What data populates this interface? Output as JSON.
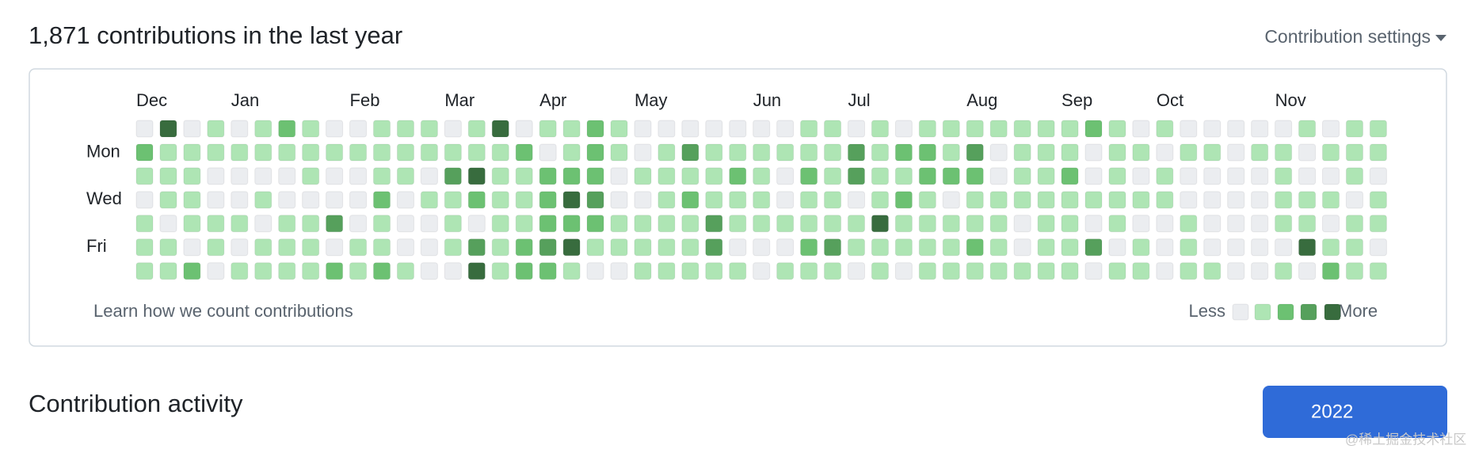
{
  "header": {
    "title": "1,871 contributions in the last year",
    "settings": "Contribution settings"
  },
  "calendar": {
    "months": [
      "Dec",
      "Jan",
      "Feb",
      "Mar",
      "Apr",
      "May",
      "Jun",
      "Jul",
      "Aug",
      "Sep",
      "Oct",
      "Nov"
    ],
    "days": [
      "Mon",
      "Wed",
      "Fri"
    ],
    "level_colors": [
      "#ebedf0",
      "#aee5b4",
      "#6cc172",
      "#56a05c",
      "#386c3e"
    ],
    "levels": [
      [
        0,
        4,
        0,
        1,
        0,
        1,
        2,
        1,
        0,
        0,
        1,
        1,
        1,
        0,
        1,
        4,
        0,
        1,
        1,
        2,
        1,
        0,
        0,
        0,
        0,
        0,
        0,
        0,
        1,
        1,
        0,
        1,
        0,
        1,
        1,
        1,
        1,
        1,
        1,
        1,
        2,
        1,
        0,
        1,
        0,
        0,
        0,
        0,
        0,
        1,
        0,
        1,
        1
      ],
      [
        2,
        1,
        1,
        1,
        1,
        1,
        1,
        1,
        1,
        1,
        1,
        1,
        1,
        1,
        1,
        1,
        2,
        0,
        1,
        2,
        1,
        0,
        1,
        3,
        1,
        1,
        1,
        1,
        1,
        1,
        3,
        1,
        2,
        2,
        1,
        3,
        0,
        1,
        1,
        1,
        0,
        1,
        1,
        0,
        1,
        1,
        0,
        1,
        1,
        0,
        1,
        1,
        1
      ],
      [
        1,
        1,
        1,
        0,
        0,
        0,
        0,
        1,
        0,
        0,
        1,
        1,
        0,
        3,
        4,
        1,
        1,
        2,
        2,
        2,
        0,
        1,
        1,
        1,
        1,
        2,
        1,
        0,
        2,
        1,
        3,
        1,
        1,
        2,
        2,
        2,
        0,
        1,
        1,
        2,
        0,
        1,
        0,
        1,
        0,
        0,
        0,
        0,
        1,
        0,
        0,
        1,
        0
      ],
      [
        0,
        1,
        1,
        0,
        0,
        1,
        0,
        0,
        0,
        0,
        2,
        0,
        1,
        1,
        2,
        1,
        1,
        2,
        4,
        3,
        0,
        0,
        1,
        2,
        1,
        1,
        1,
        0,
        1,
        1,
        0,
        1,
        2,
        1,
        0,
        1,
        1,
        1,
        1,
        1,
        1,
        1,
        1,
        1,
        0,
        0,
        0,
        0,
        1,
        1,
        1,
        0,
        1
      ],
      [
        1,
        0,
        1,
        1,
        1,
        0,
        1,
        1,
        3,
        0,
        1,
        0,
        0,
        1,
        0,
        1,
        1,
        2,
        2,
        2,
        1,
        1,
        1,
        1,
        3,
        1,
        1,
        1,
        1,
        1,
        1,
        4,
        1,
        1,
        1,
        1,
        1,
        0,
        1,
        1,
        0,
        1,
        0,
        0,
        1,
        0,
        0,
        0,
        1,
        1,
        0,
        1,
        1
      ],
      [
        1,
        1,
        0,
        1,
        0,
        1,
        1,
        1,
        0,
        1,
        1,
        0,
        0,
        1,
        3,
        1,
        2,
        3,
        4,
        1,
        1,
        1,
        1,
        1,
        3,
        0,
        0,
        0,
        2,
        3,
        1,
        1,
        1,
        1,
        1,
        2,
        1,
        0,
        1,
        1,
        3,
        0,
        1,
        0,
        1,
        0,
        0,
        0,
        0,
        4,
        1,
        1,
        0
      ],
      [
        1,
        1,
        2,
        0,
        1,
        1,
        1,
        1,
        2,
        1,
        2,
        1,
        0,
        0,
        4,
        1,
        2,
        2,
        1,
        0,
        0,
        1,
        1,
        1,
        1,
        1,
        0,
        1,
        1,
        1,
        0,
        1,
        0,
        1,
        1,
        1,
        1,
        1,
        1,
        1,
        0,
        1,
        1,
        0,
        1,
        1,
        0,
        0,
        1,
        0,
        2,
        1,
        1
      ]
    ],
    "footer_link": "Learn how we count contributions",
    "legend": {
      "less": "Less",
      "more": "More"
    }
  },
  "activity": {
    "title": "Contribution activity",
    "year_button": "2022"
  },
  "watermark": "@稀土掘金技术社区"
}
